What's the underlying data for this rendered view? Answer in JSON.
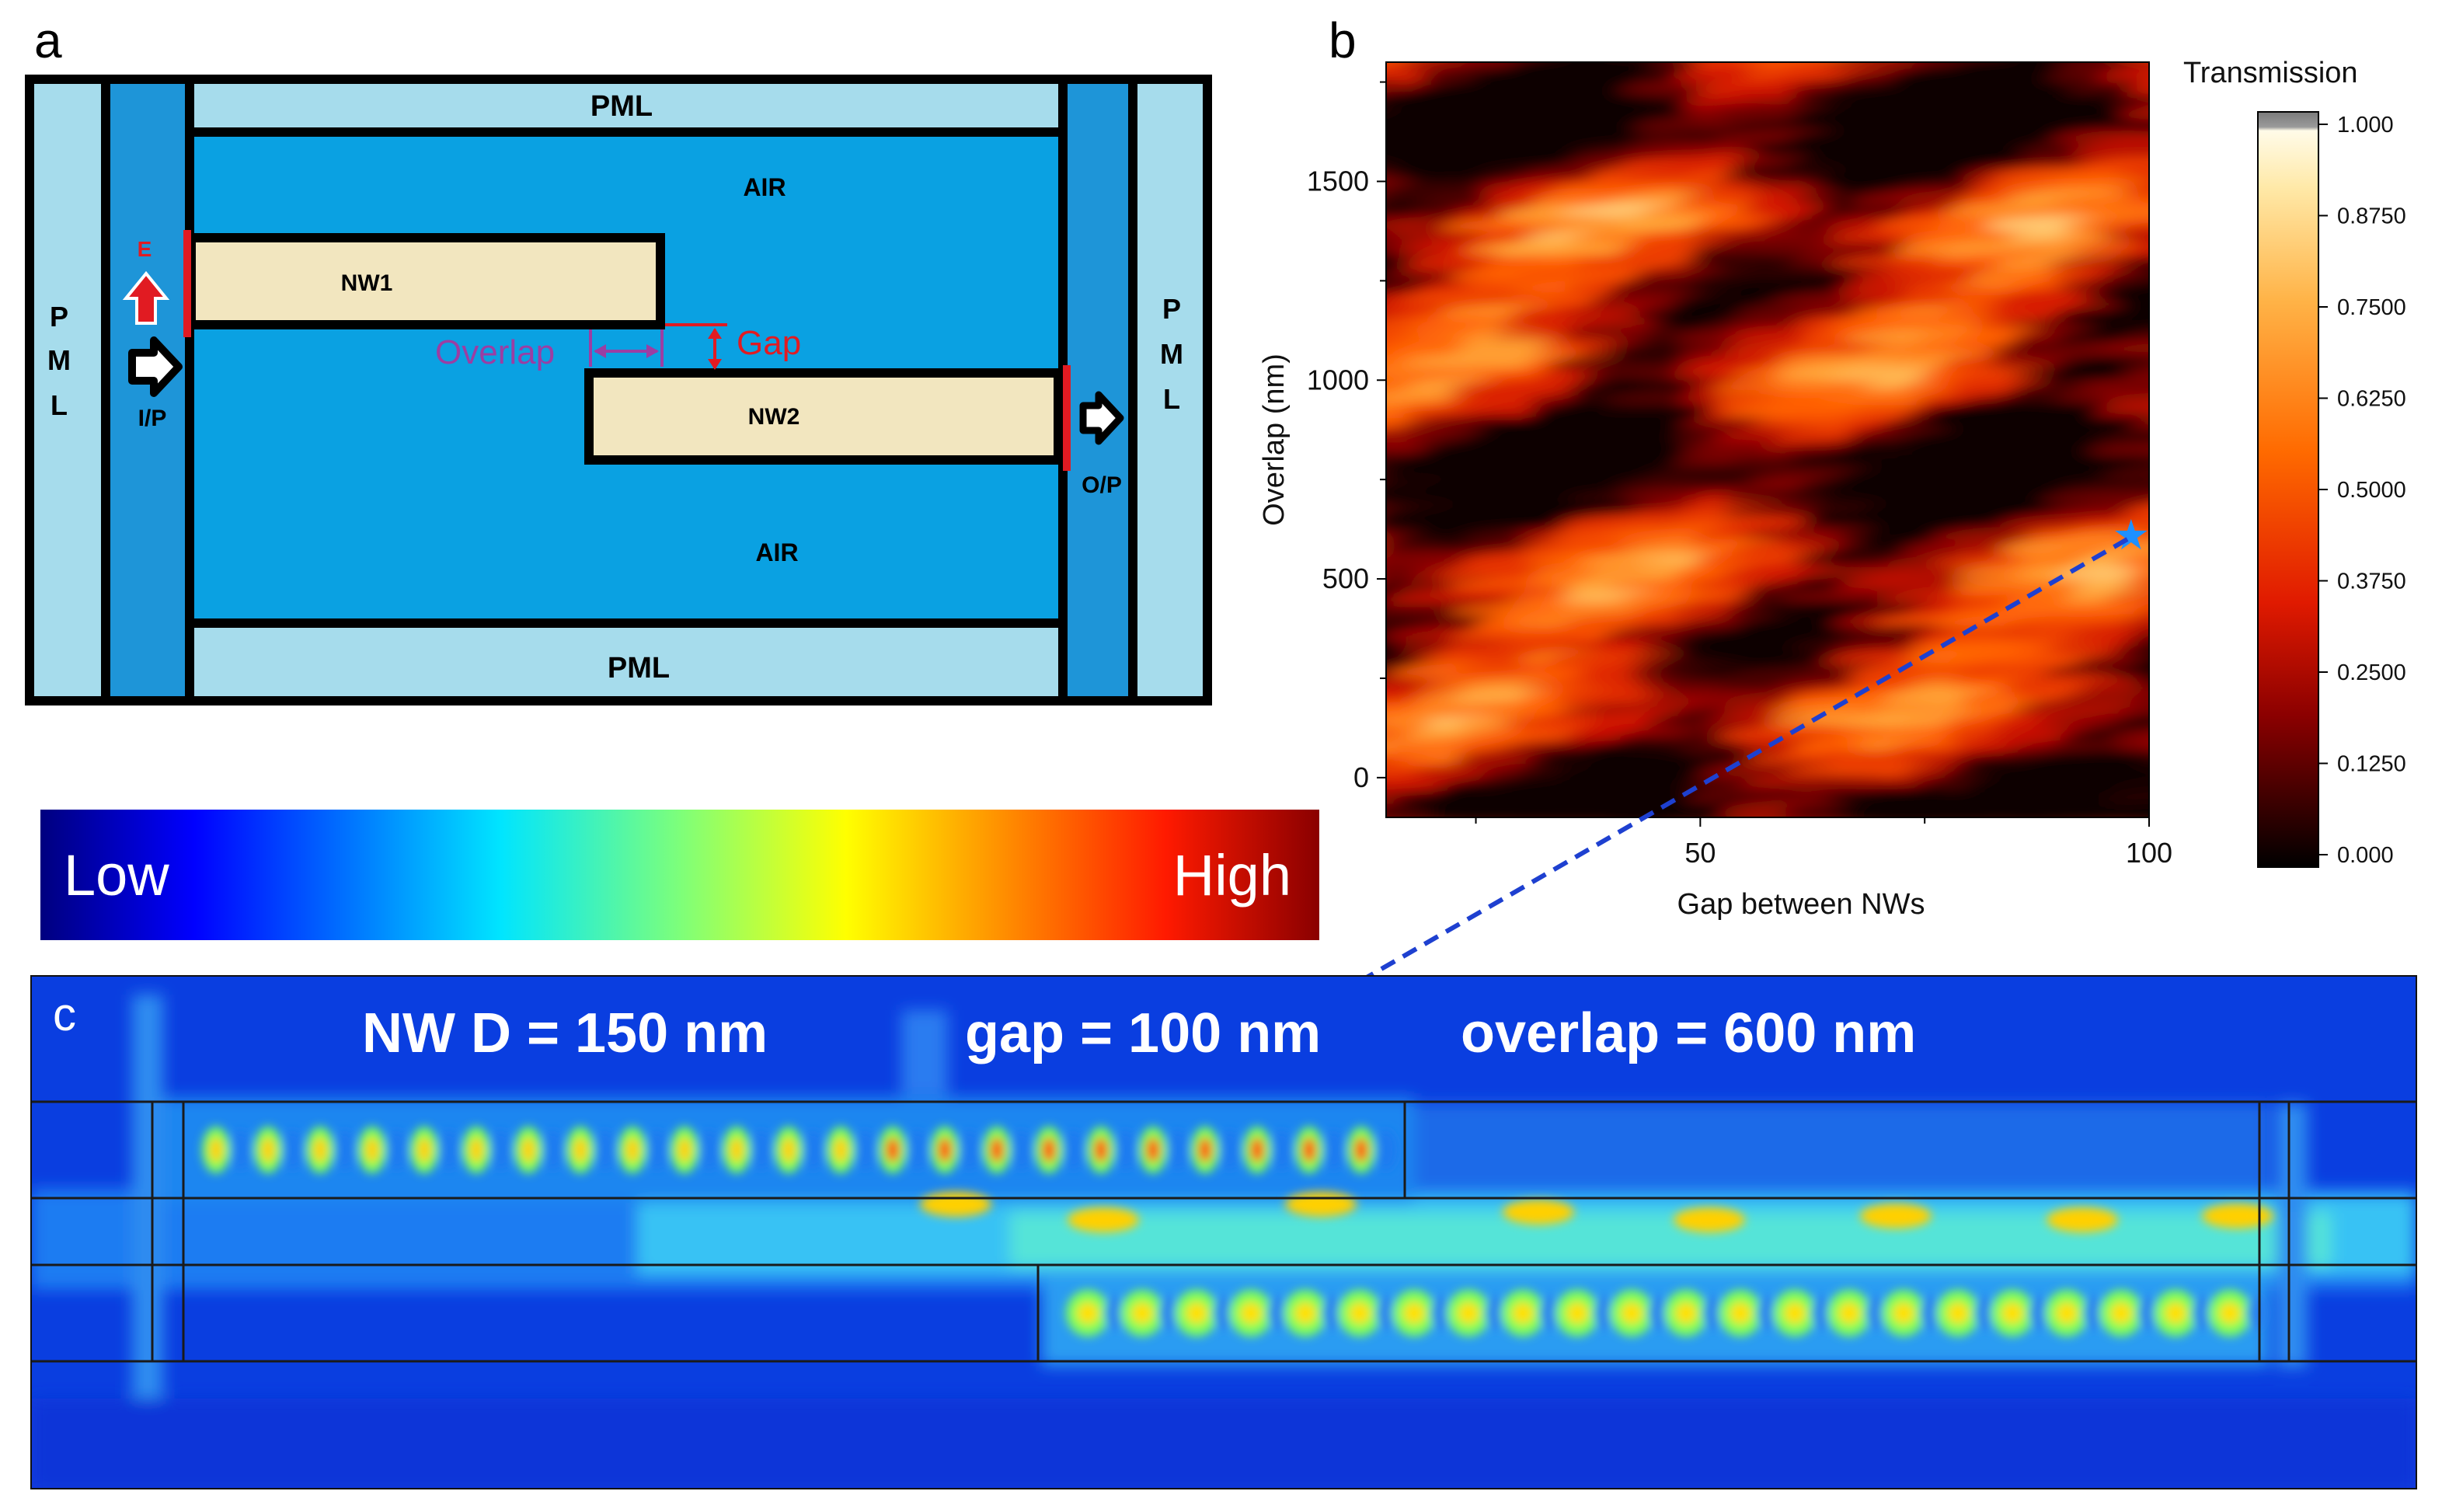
{
  "panel_labels": {
    "a": "a",
    "b": "b",
    "c": "c"
  },
  "schematic": {
    "pml_top": "PML",
    "pml_bottom": "PML",
    "pml_left": [
      "P",
      "M",
      "L"
    ],
    "pml_right": [
      "P",
      "M",
      "L"
    ],
    "air_top": "AIR",
    "air_bottom": "AIR",
    "nw1": "NW1",
    "nw2": "NW2",
    "e_field": "E",
    "input_port": "I/P",
    "output_port": "O/P",
    "overlap": "Overlap",
    "gap": "Gap"
  },
  "chart_data": {
    "type": "heatmap",
    "title": "",
    "xlabel": "Gap between NWs",
    "ylabel": "Overlap (nm)",
    "x_ticks": [
      "50",
      "100"
    ],
    "x_tick_values": [
      50,
      100
    ],
    "xlim": [
      15,
      100
    ],
    "y_ticks": [
      "0",
      "500",
      "1000",
      "1500"
    ],
    "y_tick_values": [
      0,
      500,
      1000,
      1500
    ],
    "ylim": [
      -100,
      1800
    ],
    "colorbar": {
      "label": "Transmission",
      "ticks": [
        "1.000",
        "0.8750",
        "0.7500",
        "0.6250",
        "0.5000",
        "0.3750",
        "0.2500",
        "0.1250",
        "0.000"
      ],
      "tick_values": [
        1.0,
        0.875,
        0.75,
        0.625,
        0.5,
        0.375,
        0.25,
        0.125,
        0.0
      ],
      "range": [
        0,
        1
      ]
    },
    "marked_point": {
      "gap": 98,
      "overlap": 610,
      "symbol": "star"
    }
  },
  "field_colorbar": {
    "low": "Low",
    "high": "High"
  },
  "field_map": {
    "label_d": "NW D = 150 nm",
    "label_gap": "gap = 100 nm",
    "label_overlap": "overlap = 600 nm"
  },
  "colors": {
    "pml": "#a6dcec",
    "air": "#0aa1e2",
    "port": "#1e95d8",
    "nanowire": "#f2e6bf",
    "accent_red": "#e11b22",
    "overlap_purple": "#9b3ea3",
    "star": "#1e90ff",
    "dashed_line": "#1e40d0"
  }
}
